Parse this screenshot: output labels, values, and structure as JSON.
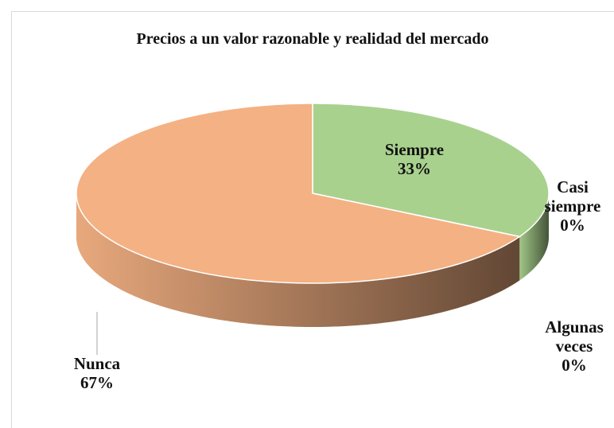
{
  "chart_data": {
    "type": "pie",
    "title": "Precios a un valor razonable y realidad del mercado",
    "categories": [
      "Siempre",
      "Casi siempre",
      "Algunas veces",
      "Nunca"
    ],
    "values": [
      33,
      0,
      0,
      67
    ],
    "value_labels": [
      "33%",
      "0%",
      "0%",
      "67%"
    ],
    "colors": [
      "#a9d18e",
      "#548235",
      "#7f7f7f",
      "#f4b183"
    ]
  }
}
